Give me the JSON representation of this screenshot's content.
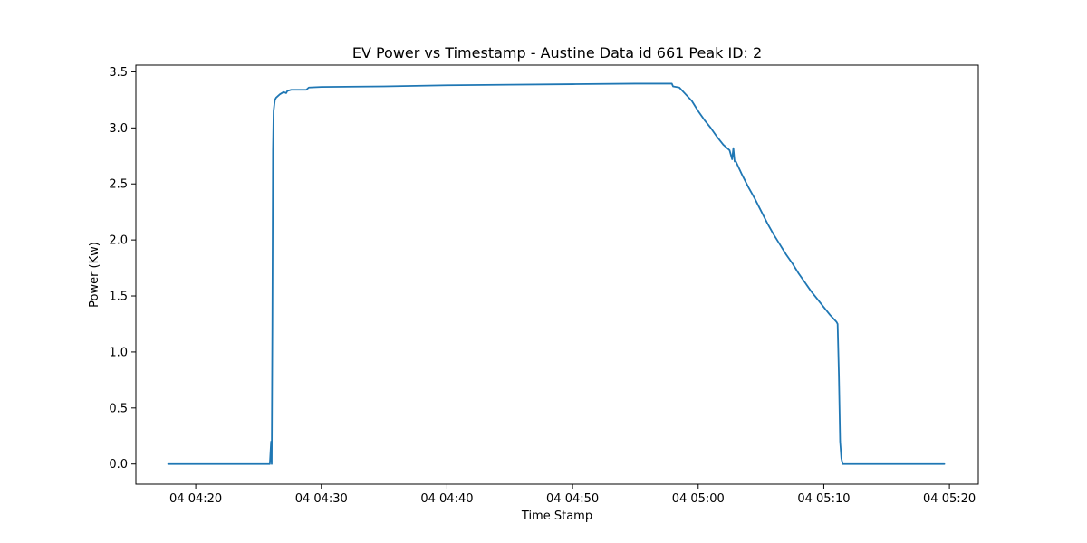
{
  "chart_data": {
    "type": "line",
    "title": "EV Power vs Timestamp - Austine Data id 661 Peak ID: 2",
    "xlabel": "Time Stamp",
    "ylabel": "Power (Kw)",
    "xlim": [
      "04:15:14",
      "05:22:18"
    ],
    "ylim": [
      -0.18,
      3.56
    ],
    "x_ticks": [
      {
        "value": "04:20:00",
        "label": "04 04:20"
      },
      {
        "value": "04:30:00",
        "label": "04 04:30"
      },
      {
        "value": "04:40:00",
        "label": "04 04:40"
      },
      {
        "value": "04:50:00",
        "label": "04 04:50"
      },
      {
        "value": "05:00:00",
        "label": "04 05:00"
      },
      {
        "value": "05:10:00",
        "label": "04 05:10"
      },
      {
        "value": "05:20:00",
        "label": "04 05:20"
      }
    ],
    "y_ticks": [
      {
        "value": 0.0,
        "label": "0.0"
      },
      {
        "value": 0.5,
        "label": "0.5"
      },
      {
        "value": 1.0,
        "label": "1.0"
      },
      {
        "value": 1.5,
        "label": "1.5"
      },
      {
        "value": 2.0,
        "label": "2.0"
      },
      {
        "value": 2.5,
        "label": "2.5"
      },
      {
        "value": 3.0,
        "label": "3.0"
      },
      {
        "value": 3.5,
        "label": "3.5"
      }
    ],
    "grid": false,
    "series": [
      {
        "color": "#1f77b4",
        "x": [
          "04:17:48",
          "04:22:00",
          "04:25:54",
          "04:26:00",
          "04:26:03",
          "04:26:06",
          "04:26:09",
          "04:26:12",
          "04:26:18",
          "04:26:24",
          "04:26:42",
          "04:27:00",
          "04:27:12",
          "04:27:18",
          "04:27:36",
          "04:28:48",
          "04:29:00",
          "04:30:00",
          "04:35:00",
          "04:40:00",
          "04:45:00",
          "04:50:00",
          "04:55:00",
          "04:57:54",
          "04:58:00",
          "04:58:30",
          "04:59:00",
          "04:59:30",
          "05:00:00",
          "05:00:30",
          "05:01:00",
          "05:01:30",
          "05:02:00",
          "05:02:30",
          "05:02:42",
          "05:02:48",
          "05:02:54",
          "05:03:00",
          "05:03:30",
          "05:04:00",
          "05:04:30",
          "05:05:00",
          "05:05:30",
          "05:06:00",
          "05:06:30",
          "05:07:00",
          "05:07:30",
          "05:08:00",
          "05:08:30",
          "05:09:00",
          "05:09:30",
          "05:10:00",
          "05:10:30",
          "05:11:00",
          "05:11:06",
          "05:11:12",
          "05:11:18",
          "05:11:24",
          "05:11:30",
          "05:15:00",
          "05:19:36"
        ],
        "values": [
          0.0,
          0.0,
          0.0,
          0.2,
          0.0,
          1.2,
          2.8,
          3.15,
          3.25,
          3.27,
          3.3,
          3.32,
          3.31,
          3.33,
          3.34,
          3.34,
          3.36,
          3.365,
          3.37,
          3.38,
          3.385,
          3.39,
          3.395,
          3.395,
          3.37,
          3.36,
          3.3,
          3.24,
          3.15,
          3.07,
          3.0,
          2.92,
          2.85,
          2.8,
          2.72,
          2.82,
          2.7,
          2.7,
          2.58,
          2.47,
          2.37,
          2.26,
          2.15,
          2.05,
          1.96,
          1.87,
          1.79,
          1.7,
          1.62,
          1.54,
          1.47,
          1.4,
          1.33,
          1.27,
          1.25,
          0.8,
          0.2,
          0.05,
          0.0,
          0.0,
          0.0
        ]
      }
    ]
  }
}
